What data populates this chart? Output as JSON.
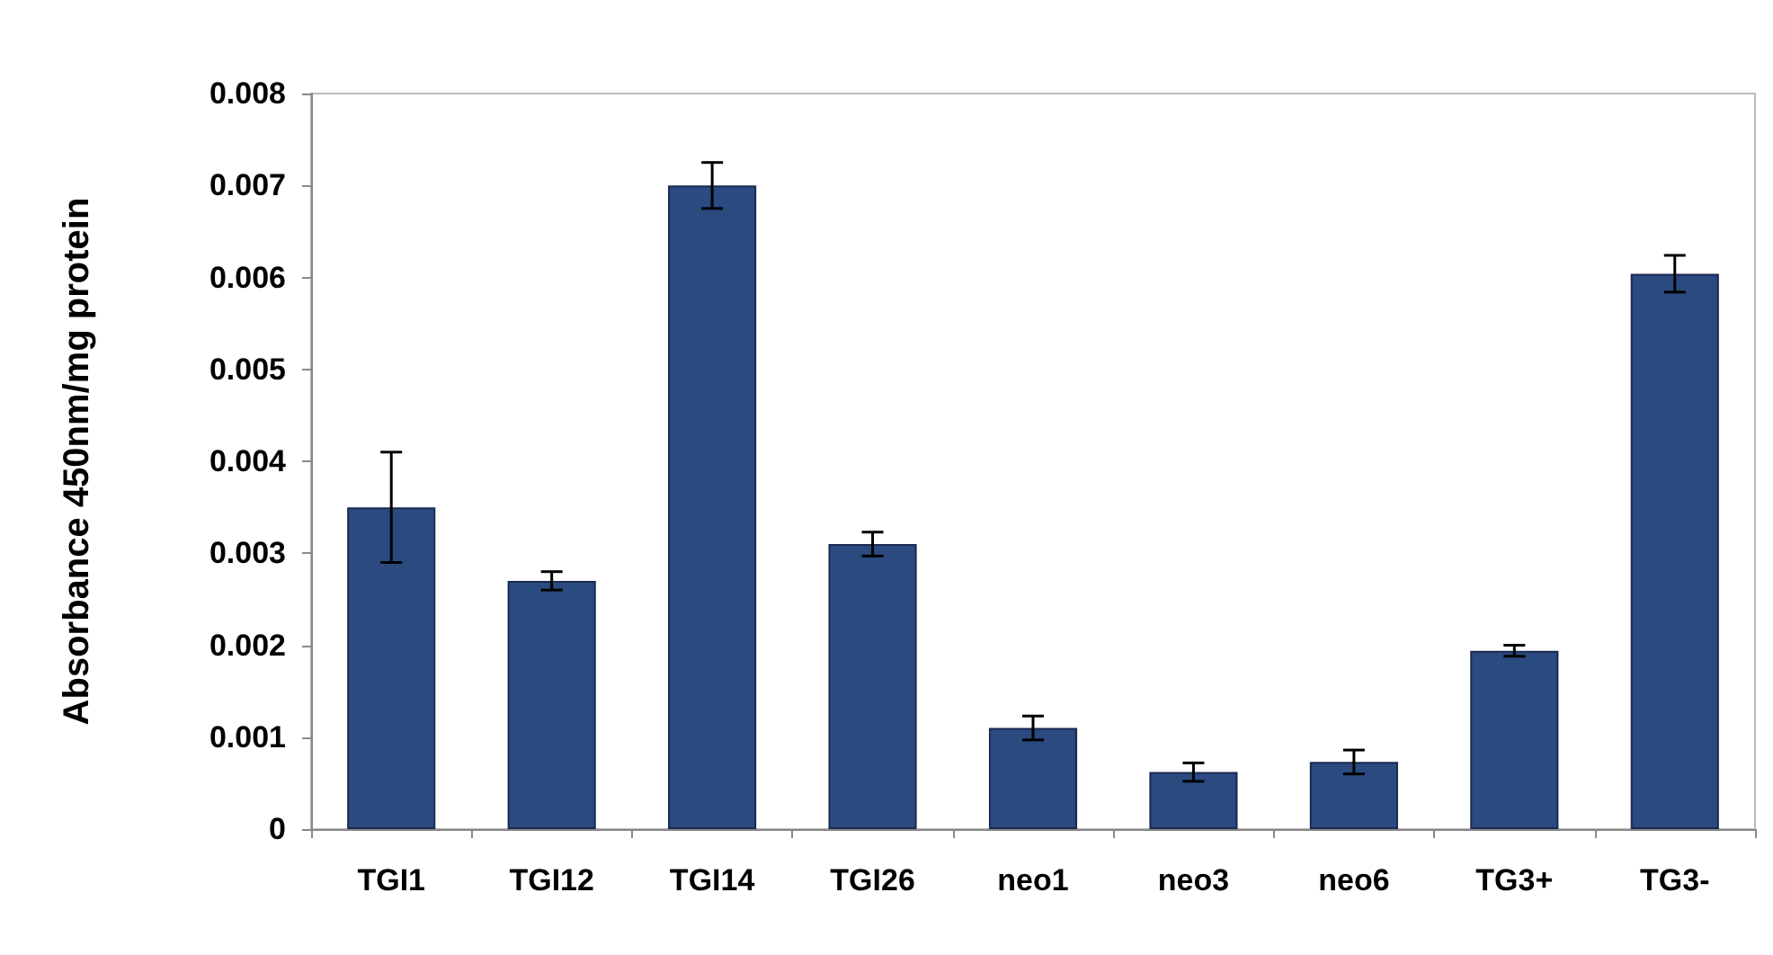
{
  "chart_data": {
    "type": "bar",
    "ylabel": "Absorbance 450nm/mg protein",
    "categories": [
      "TGI1",
      "TGI12",
      "TGI14",
      "TGI26",
      "neo1",
      "neo3",
      "neo6",
      "TG3+",
      "TG3-"
    ],
    "values": [
      0.0035,
      0.0027,
      0.007,
      0.0031,
      0.0011,
      0.00062,
      0.00073,
      0.00194,
      0.00604
    ],
    "errors": [
      0.0006,
      0.0001,
      0.00025,
      0.00013,
      0.00013,
      0.0001,
      0.00013,
      6e-05,
      0.0002
    ],
    "color": "#2a4a80",
    "ylim": [
      0,
      0.008
    ],
    "yticks": [
      0,
      0.001,
      0.002,
      0.003,
      0.004,
      0.005,
      0.006,
      0.007,
      0.008
    ],
    "grid": false
  }
}
